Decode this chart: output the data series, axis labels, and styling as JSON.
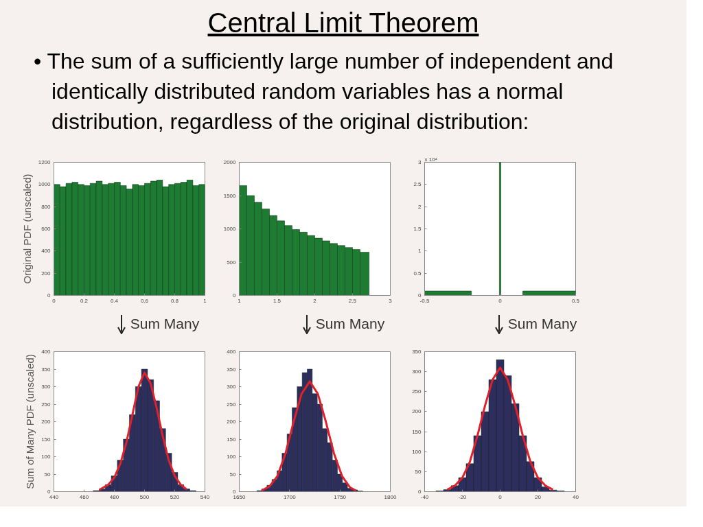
{
  "chart_data": [
    {
      "type": "other",
      "title": "Central Limit Theorem",
      "subtitle": "• The sum of a sufficiently large number of independent and identically distributed random variables has a normal distribution, regardless of the original distribution:"
    },
    {
      "type": "histogram",
      "ylabel": "Original PDF (unscaled)",
      "color": "#1e7b32",
      "bins": [
        0,
        0.04,
        0.08,
        0.12,
        0.16,
        0.2,
        0.24,
        0.28,
        0.32,
        0.36,
        0.4,
        0.44,
        0.48,
        0.52,
        0.56,
        0.6,
        0.64,
        0.68,
        0.72,
        0.76,
        0.8,
        0.84,
        0.88,
        0.92,
        0.96,
        1
      ],
      "values": [
        1000,
        980,
        1010,
        1020,
        1000,
        990,
        1010,
        1030,
        1000,
        1010,
        1020,
        990,
        960,
        1000,
        990,
        1010,
        1030,
        1040,
        980,
        1000,
        1010,
        1020,
        1040,
        990,
        1000
      ],
      "xlim": [
        0,
        1
      ],
      "ylim": [
        0,
        1200
      ],
      "xticks": [
        0,
        0.2,
        0.4,
        0.6,
        0.8,
        1
      ],
      "yticks": [
        0,
        200,
        400,
        600,
        800,
        1000,
        1200
      ]
    },
    {
      "type": "histogram",
      "color": "#1e7b32",
      "bins": [
        1,
        1.1,
        1.2,
        1.3,
        1.4,
        1.5,
        1.6,
        1.7,
        1.8,
        1.9,
        2,
        2.1,
        2.2,
        2.3,
        2.4,
        2.5,
        2.6,
        2.72
      ],
      "values": [
        1650,
        1500,
        1400,
        1300,
        1200,
        1120,
        1050,
        990,
        950,
        900,
        860,
        820,
        780,
        750,
        720,
        690,
        650
      ],
      "xlim": [
        1,
        3
      ],
      "ylim": [
        0,
        2000
      ],
      "xticks": [
        1,
        1.5,
        2,
        2.5,
        3
      ],
      "yticks": [
        0,
        500,
        1000,
        1500,
        2000
      ]
    },
    {
      "type": "histogram",
      "color": "#1e7b32",
      "annotations": [
        "x 10⁴"
      ],
      "bins": [
        -0.5,
        -0.19,
        -0.005,
        0.005,
        0.15,
        0.5
      ],
      "values": [
        0.1,
        null,
        3,
        null,
        0.1
      ],
      "xlim": [
        -0.5,
        0.5
      ],
      "ylim": [
        0,
        3
      ],
      "xticks": [
        -0.5,
        0,
        0.5
      ],
      "yticks": [
        0,
        0.5,
        1,
        1.5,
        2,
        2.5,
        3
      ]
    },
    {
      "type": "histogram",
      "ylabel": "Sum of Many PDF (unscaled)",
      "annotations": [
        "Sum Many"
      ],
      "color": "#2e2e5e",
      "bins": [
        466,
        470,
        474,
        478,
        482,
        486,
        490,
        494,
        498,
        502,
        506,
        510,
        514,
        518,
        522,
        526,
        530,
        534
      ],
      "values": [
        3,
        8,
        20,
        45,
        90,
        150,
        220,
        300,
        350,
        320,
        260,
        180,
        110,
        55,
        20,
        8,
        3
      ],
      "series": [
        {
          "type": "line",
          "color": "#e0202a",
          "x": [
            470,
            476,
            480,
            484,
            488,
            492,
            496,
            500,
            504,
            508,
            512,
            516,
            520,
            524,
            528
          ],
          "values": [
            5,
            20,
            40,
            80,
            140,
            220,
            300,
            340,
            310,
            240,
            160,
            90,
            45,
            20,
            6
          ]
        }
      ],
      "xlim": [
        440,
        540
      ],
      "ylim": [
        0,
        400
      ],
      "xticks": [
        440,
        460,
        480,
        500,
        520,
        540
      ],
      "yticks": [
        0,
        50,
        100,
        150,
        200,
        250,
        300,
        350,
        400
      ]
    },
    {
      "type": "histogram",
      "annotations": [
        "Sum Many"
      ],
      "color": "#2e2e5e",
      "bins": [
        1667.5,
        1672.5,
        1677.5,
        1682.5,
        1687.5,
        1692.5,
        1697.5,
        1702.5,
        1707.5,
        1712.5,
        1717.5,
        1722.5,
        1727.5,
        1732.5,
        1737.5,
        1742.5,
        1747.5,
        1752.5,
        1757.5,
        1762.5,
        1767.5,
        1772.5
      ],
      "values": [
        3,
        8,
        18,
        35,
        60,
        110,
        165,
        240,
        300,
        340,
        350,
        280,
        250,
        180,
        140,
        90,
        50,
        25,
        10,
        5,
        2
      ],
      "series": [
        {
          "type": "line",
          "color": "#e0202a",
          "x": [
            1672,
            1680,
            1688,
            1696,
            1704,
            1712,
            1720,
            1728,
            1736,
            1744,
            1752,
            1760,
            1766
          ],
          "values": [
            3,
            15,
            45,
            110,
            200,
            280,
            315,
            280,
            200,
            110,
            45,
            12,
            3
          ]
        }
      ],
      "xlim": [
        1650,
        1800
      ],
      "ylim": [
        0,
        400
      ],
      "xticks": [
        1650,
        1700,
        1750,
        1800
      ],
      "yticks": [
        0,
        50,
        100,
        150,
        200,
        250,
        300,
        350,
        400
      ]
    },
    {
      "type": "histogram",
      "annotations": [
        "Sum Many"
      ],
      "color": "#2e2e5e",
      "bins": [
        -34,
        -30,
        -26,
        -22,
        -18,
        -14,
        -10,
        -6,
        -2,
        2,
        6,
        10,
        14,
        18,
        22,
        26,
        30,
        34
      ],
      "values": [
        2,
        5,
        15,
        35,
        70,
        140,
        200,
        280,
        330,
        290,
        220,
        140,
        75,
        35,
        12,
        4,
        2
      ],
      "series": [
        {
          "type": "line",
          "color": "#e0202a",
          "x": [
            -28,
            -24,
            -20,
            -16,
            -12,
            -8,
            -4,
            0,
            4,
            8,
            12,
            16,
            20,
            24,
            28
          ],
          "values": [
            5,
            15,
            35,
            75,
            140,
            215,
            280,
            310,
            280,
            215,
            140,
            75,
            35,
            15,
            5
          ]
        }
      ],
      "xlim": [
        -40,
        40
      ],
      "ylim": [
        0,
        350
      ],
      "xticks": [
        -40,
        -20,
        0,
        20,
        40
      ],
      "yticks": [
        0,
        50,
        100,
        150,
        200,
        250,
        300,
        350
      ]
    }
  ]
}
